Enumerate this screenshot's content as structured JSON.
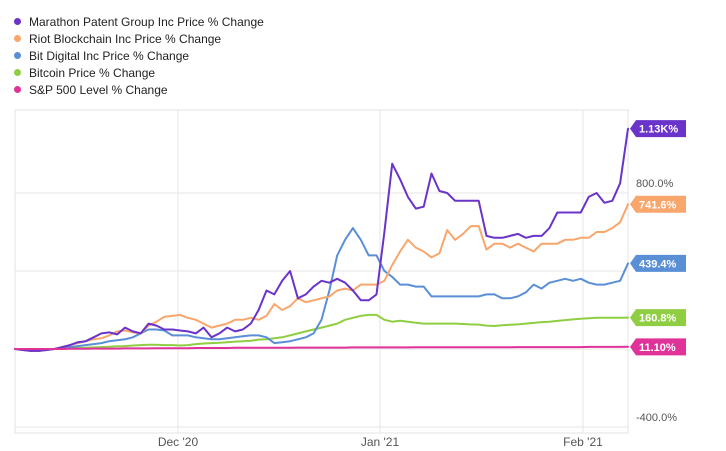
{
  "chart_data": {
    "type": "line",
    "y_axis_unit": "% change",
    "ylim": [
      -400,
      1150
    ],
    "grid": true,
    "legend_position": "top-left",
    "x_ticks": [
      "Dec '20",
      "Jan '21",
      "Feb '21"
    ],
    "y_ticks": [
      {
        "value": 800,
        "label": "800.0%"
      },
      {
        "value": -400,
        "label": "-400.0%"
      }
    ],
    "series": [
      {
        "name": "Marathon Patent Group Inc Price % Change",
        "color": "#6a33c9",
        "end_label": "1.13K%",
        "values": [
          0,
          -5,
          -10,
          -10,
          -5,
          0,
          10,
          20,
          35,
          40,
          60,
          80,
          85,
          75,
          110,
          90,
          80,
          130,
          120,
          100,
          100,
          95,
          90,
          80,
          110,
          60,
          80,
          110,
          90,
          100,
          130,
          200,
          300,
          280,
          350,
          400,
          260,
          280,
          320,
          350,
          340,
          360,
          340,
          300,
          250,
          250,
          280,
          600,
          950,
          870,
          780,
          720,
          730,
          900,
          810,
          800,
          760,
          760,
          760,
          760,
          580,
          570,
          570,
          580,
          590,
          570,
          580,
          580,
          620,
          700,
          700,
          700,
          700,
          780,
          800,
          750,
          760,
          850,
          1130
        ]
      },
      {
        "name": "Riot Blockchain Inc Price % Change",
        "color": "#f9a66c",
        "end_label": "741.6%",
        "values": [
          0,
          -5,
          -10,
          -10,
          -5,
          0,
          10,
          20,
          30,
          40,
          50,
          55,
          70,
          90,
          95,
          85,
          80,
          120,
          140,
          165,
          170,
          175,
          160,
          150,
          130,
          110,
          120,
          130,
          150,
          150,
          160,
          150,
          170,
          230,
          200,
          220,
          260,
          240,
          250,
          260,
          270,
          300,
          310,
          300,
          330,
          330,
          330,
          350,
          430,
          500,
          560,
          520,
          500,
          470,
          490,
          610,
          560,
          590,
          630,
          630,
          510,
          540,
          540,
          520,
          540,
          520,
          500,
          540,
          540,
          540,
          560,
          560,
          570,
          570,
          600,
          600,
          620,
          650,
          742
        ]
      },
      {
        "name": "Bit Digital Inc Price % Change",
        "color": "#5a8fd6",
        "end_label": "439.4%",
        "values": [
          0,
          -5,
          -10,
          -10,
          -5,
          0,
          5,
          10,
          15,
          20,
          25,
          30,
          40,
          45,
          50,
          60,
          80,
          100,
          100,
          95,
          70,
          70,
          70,
          60,
          55,
          50,
          50,
          55,
          60,
          65,
          70,
          70,
          60,
          30,
          35,
          40,
          50,
          60,
          80,
          150,
          300,
          480,
          560,
          620,
          560,
          480,
          480,
          400,
          370,
          330,
          330,
          320,
          320,
          270,
          270,
          270,
          270,
          270,
          270,
          270,
          280,
          280,
          260,
          260,
          270,
          290,
          330,
          310,
          340,
          350,
          360,
          350,
          360,
          340,
          330,
          330,
          340,
          350,
          439
        ]
      },
      {
        "name": "Bitcoin Price % Change",
        "color": "#8fce43",
        "end_label": "160.8%",
        "values": [
          0,
          0,
          0,
          0,
          0,
          0,
          2,
          4,
          5,
          6,
          8,
          10,
          12,
          14,
          15,
          18,
          20,
          22,
          22,
          20,
          20,
          18,
          20,
          25,
          28,
          30,
          32,
          35,
          38,
          40,
          42,
          48,
          50,
          55,
          60,
          70,
          80,
          90,
          100,
          110,
          120,
          130,
          150,
          160,
          170,
          175,
          175,
          150,
          140,
          145,
          140,
          135,
          130,
          130,
          130,
          130,
          130,
          128,
          126,
          125,
          120,
          118,
          122,
          124,
          126,
          130,
          134,
          138,
          140,
          144,
          148,
          152,
          155,
          158,
          160,
          160,
          160,
          160,
          161
        ]
      },
      {
        "name": "S&P 500 Level % Change",
        "color": "#e0339a",
        "end_label": "11.10%",
        "values": [
          0,
          0,
          0,
          0,
          0,
          0,
          0,
          1,
          1,
          1,
          2,
          2,
          2,
          2,
          3,
          3,
          3,
          3,
          4,
          4,
          4,
          4,
          4,
          5,
          5,
          5,
          5,
          5,
          6,
          6,
          6,
          6,
          6,
          6,
          6,
          6,
          7,
          7,
          7,
          7,
          7,
          7,
          7,
          8,
          8,
          8,
          8,
          8,
          8,
          8,
          8,
          9,
          9,
          9,
          9,
          9,
          9,
          9,
          9,
          9,
          9,
          9,
          9,
          9,
          10,
          10,
          10,
          10,
          10,
          10,
          10,
          10,
          10,
          11,
          11,
          11,
          11,
          11,
          11.1
        ]
      }
    ]
  }
}
